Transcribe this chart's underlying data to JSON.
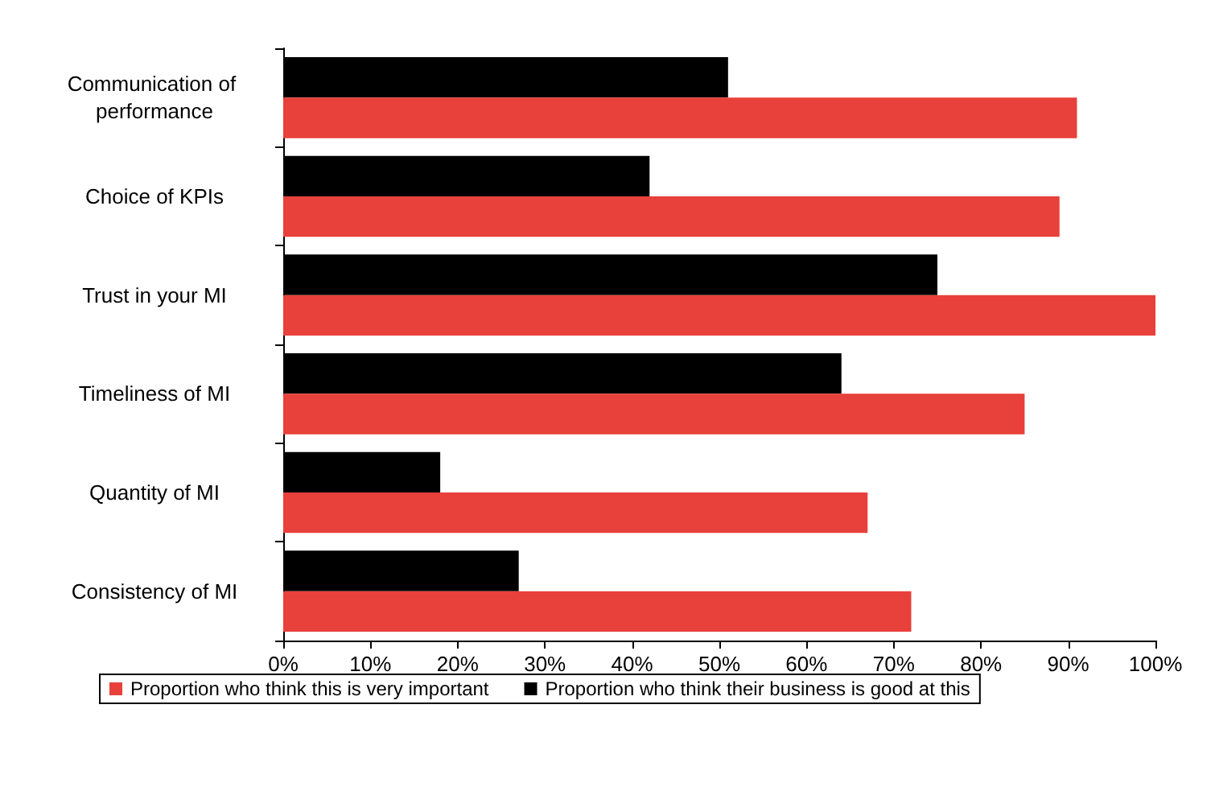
{
  "chart_data": {
    "type": "bar",
    "orientation": "horizontal",
    "categories": [
      "Communication of performance",
      "Choice of KPIs",
      "Trust in your MI",
      "Timeliness of MI",
      "Quantity of MI",
      "Consistency of MI"
    ],
    "series": [
      {
        "name": "Proportion who think this is very important",
        "color": "#e8403a",
        "values": [
          91,
          89,
          100,
          85,
          67,
          72
        ]
      },
      {
        "name": "Proportion who think their business is good at this",
        "color": "#000000",
        "values": [
          51,
          42,
          75,
          64,
          18,
          27
        ]
      }
    ],
    "xlim": [
      0,
      100
    ],
    "xticks": [
      {
        "value": 0,
        "label": "0%"
      },
      {
        "value": 10,
        "label": "10%"
      },
      {
        "value": 20,
        "label": "20%"
      },
      {
        "value": 30,
        "label": "30%"
      },
      {
        "value": 40,
        "label": "40%"
      },
      {
        "value": 50,
        "label": "50%"
      },
      {
        "value": 60,
        "label": "60%"
      },
      {
        "value": 70,
        "label": "70%"
      },
      {
        "value": 80,
        "label": "80%"
      },
      {
        "value": 90,
        "label": "90%"
      },
      {
        "value": 100,
        "label": "100%"
      }
    ],
    "grid": false,
    "legend": "bottom"
  }
}
